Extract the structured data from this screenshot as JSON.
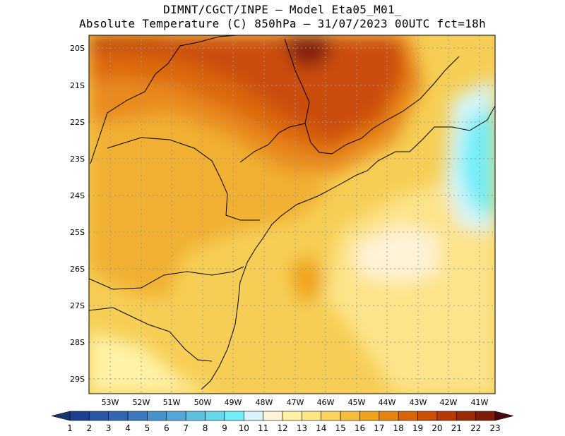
{
  "header": {
    "line1": "DIMNT/CGCT/INPE –  Model Eta05_M01_",
    "line2": "Absolute Temperature (C) 850hPa –  31/07/2023 00UTC fct=18h"
  },
  "axes": {
    "lat_ticks": [
      "20S",
      "21S",
      "22S",
      "23S",
      "24S",
      "25S",
      "26S",
      "27S",
      "28S",
      "29S"
    ],
    "lon_ticks": [
      "53W",
      "52W",
      "51W",
      "50W",
      "49W",
      "48W",
      "47W",
      "46W",
      "45W",
      "44W",
      "43W",
      "42W",
      "41W"
    ]
  },
  "colorbar": {
    "labels": [
      "1",
      "2",
      "3",
      "4",
      "5",
      "6",
      "7",
      "8",
      "9",
      "10",
      "11",
      "12",
      "13",
      "14",
      "15",
      "16",
      "17",
      "18",
      "19",
      "20",
      "21",
      "22",
      "23"
    ],
    "colors": [
      "#1c3f8f",
      "#2a56a4",
      "#3366b0",
      "#3b7abd",
      "#4891c9",
      "#55a8d6",
      "#5ec0e0",
      "#67d8ec",
      "#72eef8",
      "#d6f4f7",
      "#fff5d6",
      "#fff2a6",
      "#fee784",
      "#fcd45e",
      "#f6bd3a",
      "#efa21b",
      "#e58310",
      "#da6508",
      "#cd4e05",
      "#b53a03",
      "#9a2a02",
      "#7e1c08",
      "#5c0b16"
    ],
    "under_color": "#19346f",
    "over_color": "#4a0710"
  }
}
